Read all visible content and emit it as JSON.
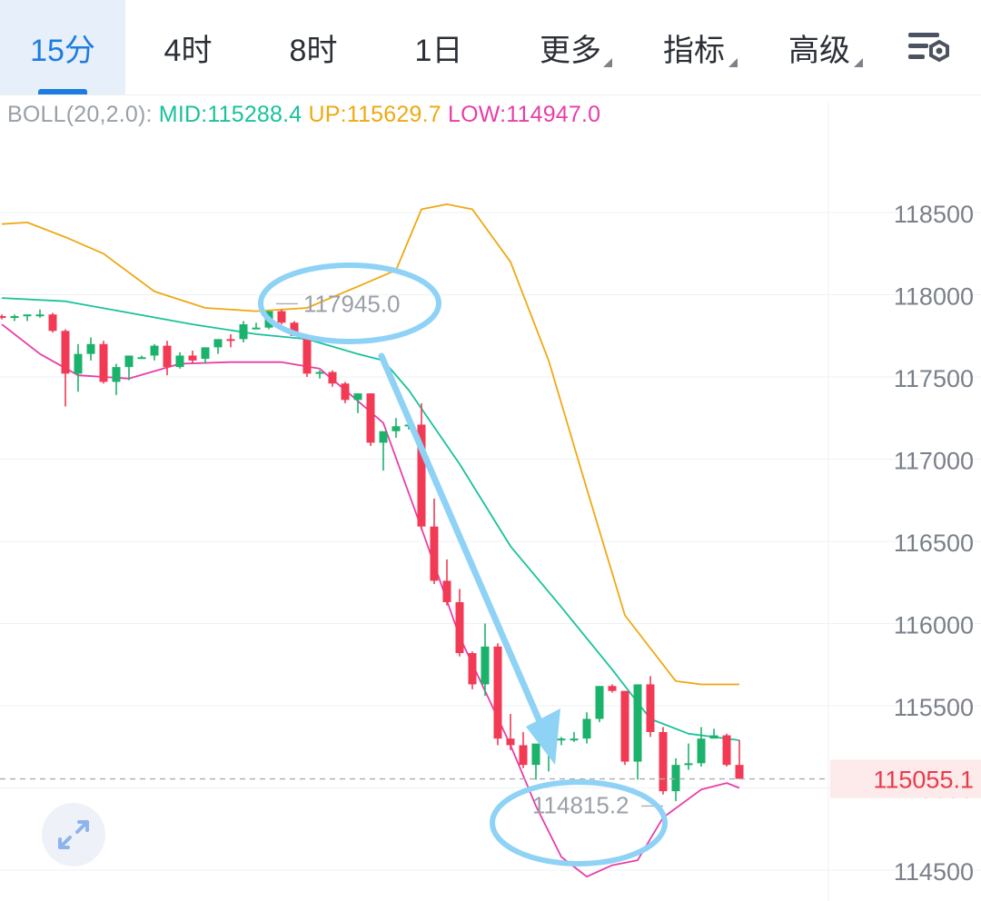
{
  "tabs": [
    {
      "label": "15分",
      "active": true
    },
    {
      "label": "4时",
      "active": false
    },
    {
      "label": "8时",
      "active": false
    },
    {
      "label": "1日",
      "active": false
    },
    {
      "label": "更多",
      "active": false,
      "dropdown": true
    },
    {
      "label": "指标",
      "active": false,
      "dropdown": true
    },
    {
      "label": "高级",
      "active": false,
      "dropdown": true
    }
  ],
  "settings_icon": "chart-settings-icon",
  "legend": {
    "indicator": "BOLL(20,2.0):",
    "mid": "MID:115288.4",
    "up": "UP:115629.7",
    "low": "LOW:114947.0"
  },
  "colors": {
    "accent": "#1e7ce0",
    "up_candle": "#1bb26b",
    "down_candle": "#f23a55",
    "mid_line": "#19c29a",
    "upper_band": "#efa912",
    "lower_band": "#e83ea8",
    "annotation": "#8ed2f5"
  },
  "expand_icon": "expand-icon",
  "chart_data": {
    "type": "candlestick",
    "indicator": "BOLL(20,2.0)",
    "y_ticks": [
      118500,
      118000,
      117500,
      117000,
      116500,
      116000,
      115500,
      115000,
      114500
    ],
    "ylim": [
      114500,
      118900
    ],
    "current_price": "115055.1",
    "max_label": "117945.0",
    "min_label": "114815.2",
    "candles": [
      [
        117870,
        117880,
        117850,
        117860
      ],
      [
        117860,
        117880,
        117840,
        117870
      ],
      [
        117870,
        117880,
        117840,
        117880
      ],
      [
        117880,
        117910,
        117860,
        117880
      ],
      [
        117880,
        117890,
        117770,
        117780
      ],
      [
        117780,
        117790,
        117320,
        117520
      ],
      [
        117520,
        117700,
        117410,
        117640
      ],
      [
        117640,
        117740,
        117600,
        117700
      ],
      [
        117700,
        117720,
        117460,
        117470
      ],
      [
        117470,
        117580,
        117390,
        117560
      ],
      [
        117560,
        117620,
        117480,
        117630
      ],
      [
        117610,
        117630,
        117610,
        117620
      ],
      [
        117630,
        117700,
        117600,
        117690
      ],
      [
        117690,
        117720,
        117510,
        117560
      ],
      [
        117560,
        117650,
        117550,
        117630
      ],
      [
        117630,
        117660,
        117580,
        117600
      ],
      [
        117610,
        117680,
        117580,
        117680
      ],
      [
        117680,
        117730,
        117640,
        117730
      ],
      [
        117730,
        117760,
        117680,
        117720
      ],
      [
        117730,
        117840,
        117710,
        117820
      ],
      [
        117800,
        117830,
        117790,
        117800
      ],
      [
        117800,
        117900,
        117790,
        117900
      ],
      [
        117900,
        117910,
        117820,
        117830
      ],
      [
        117830,
        117840,
        117750,
        117750
      ],
      [
        117750,
        117750,
        117500,
        117520
      ],
      [
        117520,
        117540,
        117490,
        117530
      ],
      [
        117530,
        117540,
        117440,
        117460
      ],
      [
        117460,
        117470,
        117340,
        117360
      ],
      [
        117360,
        117400,
        117280,
        117400
      ],
      [
        117400,
        117400,
        117080,
        117100
      ],
      [
        117100,
        117160,
        116930,
        117170
      ],
      [
        117170,
        117250,
        117130,
        117200
      ],
      [
        117200,
        117230,
        117180,
        117210
      ],
      [
        117210,
        117340,
        116570,
        116590
      ],
      [
        116590,
        116760,
        116240,
        116260
      ],
      [
        116260,
        116390,
        116110,
        116130
      ],
      [
        116130,
        116210,
        115800,
        115820
      ],
      [
        115820,
        115830,
        115600,
        115630
      ],
      [
        115630,
        116000,
        115560,
        115860
      ],
      [
        115860,
        115880,
        115260,
        115300
      ],
      [
        115300,
        115450,
        115230,
        115260
      ],
      [
        115260,
        115340,
        115120,
        115140
      ],
      [
        115140,
        115260,
        115050,
        115270
      ],
      [
        115270,
        115320,
        115100,
        115300
      ],
      [
        115300,
        115310,
        115260,
        115300
      ],
      [
        115300,
        115340,
        115280,
        115300
      ],
      [
        115300,
        115460,
        115270,
        115420
      ],
      [
        115420,
        115620,
        115400,
        115620
      ],
      [
        115620,
        115630,
        115580,
        115590
      ],
      [
        115590,
        115590,
        115140,
        115160
      ],
      [
        115160,
        115630,
        115050,
        115630
      ],
      [
        115630,
        115680,
        115310,
        115340
      ],
      [
        115340,
        115370,
        114960,
        114980
      ],
      [
        114980,
        115180,
        114920,
        115140
      ],
      [
        115140,
        115270,
        115110,
        115150
      ],
      [
        115150,
        115370,
        115130,
        115300
      ],
      [
        115300,
        115360,
        115300,
        115320
      ],
      [
        115320,
        115330,
        115130,
        115140
      ],
      [
        115140,
        115290,
        115080,
        115055
      ]
    ],
    "boll_mid": [
      [
        0,
        117980
      ],
      [
        5,
        117960
      ],
      [
        10,
        117890
      ],
      [
        15,
        117820
      ],
      [
        20,
        117760
      ],
      [
        24,
        117730
      ],
      [
        28,
        117640
      ],
      [
        30,
        117600
      ],
      [
        32,
        117420
      ],
      [
        36,
        116970
      ],
      [
        40,
        116470
      ],
      [
        44,
        116100
      ],
      [
        48,
        115720
      ],
      [
        51,
        115420
      ],
      [
        54,
        115330
      ],
      [
        58,
        115290
      ]
    ],
    "boll_up": [
      [
        0,
        118430
      ],
      [
        2,
        118440
      ],
      [
        5,
        118350
      ],
      [
        8,
        118250
      ],
      [
        12,
        118020
      ],
      [
        16,
        117920
      ],
      [
        20,
        117900
      ],
      [
        24,
        117920
      ],
      [
        28,
        118050
      ],
      [
        31,
        118150
      ],
      [
        33,
        118520
      ],
      [
        35,
        118550
      ],
      [
        37,
        118520
      ],
      [
        40,
        118200
      ],
      [
        43,
        117600
      ],
      [
        46,
        116820
      ],
      [
        49,
        116050
      ],
      [
        53,
        115650
      ],
      [
        55,
        115630
      ],
      [
        58,
        115630
      ]
    ],
    "boll_low": [
      [
        0,
        117820
      ],
      [
        3,
        117640
      ],
      [
        6,
        117510
      ],
      [
        10,
        117490
      ],
      [
        14,
        117580
      ],
      [
        18,
        117590
      ],
      [
        22,
        117590
      ],
      [
        25,
        117550
      ],
      [
        27,
        117420
      ],
      [
        30,
        117220
      ],
      [
        33,
        116580
      ],
      [
        36,
        115920
      ],
      [
        38,
        115590
      ],
      [
        40,
        115260
      ],
      [
        42,
        114890
      ],
      [
        44,
        114580
      ],
      [
        46,
        114460
      ],
      [
        48,
        114530
      ],
      [
        50,
        114560
      ],
      [
        52,
        114820
      ],
      [
        55,
        114990
      ],
      [
        57,
        115030
      ],
      [
        58,
        115000
      ]
    ]
  }
}
